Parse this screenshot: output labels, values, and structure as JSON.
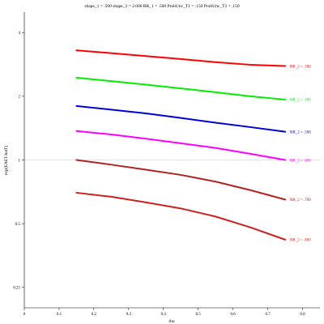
{
  "chart_data": {
    "type": "line",
    "title": "shape_1 = .500  shape_2 = 2.000  RR_1 = .500  ProbUnc_T1 = .150  ProbUnc_T2 = .150",
    "xlabel": "rho",
    "ylabel": "exp(EAET.hatT)",
    "xlim": [
      0,
      0.85
    ],
    "ylim": [
      0.2,
      5
    ],
    "yscale": "log",
    "x_ticks": [
      0,
      0.1,
      0.2,
      0.3,
      0.4,
      0.5,
      0.6,
      0.7,
      0.8
    ],
    "x_tick_labels": [
      "0",
      "0.1",
      "0.2",
      "0.3",
      "0.4",
      "0.5",
      "0.6",
      "0.7",
      "0.8"
    ],
    "y_ticks": [
      0.25,
      0.5,
      1,
      2,
      4
    ],
    "y_tick_labels": [
      "0.25",
      "0.5",
      "1",
      "2",
      "4"
    ],
    "reference_line_y": 1,
    "series": [
      {
        "name": "RR_2 = .300",
        "color": "#ff0000",
        "x": [
          0.15,
          0.25,
          0.35,
          0.45,
          0.55,
          0.65,
          0.75
        ],
        "y": [
          3.3,
          3.2,
          3.1,
          3.0,
          2.9,
          2.82,
          2.78
        ]
      },
      {
        "name": "RR_2 = .400",
        "color": "#00ee00",
        "x": [
          0.15,
          0.25,
          0.35,
          0.45,
          0.55,
          0.65,
          0.75
        ],
        "y": [
          2.45,
          2.36,
          2.27,
          2.18,
          2.09,
          2.0,
          1.93
        ]
      },
      {
        "name": "RR_2 = .500",
        "color": "#0000dd",
        "x": [
          0.15,
          0.25,
          0.35,
          0.45,
          0.55,
          0.65,
          0.75
        ],
        "y": [
          1.8,
          1.73,
          1.66,
          1.58,
          1.5,
          1.43,
          1.36
        ]
      },
      {
        "name": "RR_2 = .600",
        "color": "#ff00ff",
        "x": [
          0.15,
          0.25,
          0.35,
          0.45,
          0.55,
          0.65,
          0.75
        ],
        "y": [
          1.37,
          1.32,
          1.26,
          1.2,
          1.14,
          1.07,
          1.0
        ]
      },
      {
        "name": "RR_2 = .700",
        "color": "#b22222",
        "x": [
          0.15,
          0.25,
          0.35,
          0.45,
          0.55,
          0.65,
          0.75
        ],
        "y": [
          1.0,
          0.95,
          0.9,
          0.85,
          0.79,
          0.72,
          0.65
        ]
      },
      {
        "name": "RR_2 = .800",
        "color": "#cc2020",
        "x": [
          0.15,
          0.25,
          0.35,
          0.45,
          0.55,
          0.65,
          0.75
        ],
        "y": [
          0.7,
          0.67,
          0.63,
          0.59,
          0.54,
          0.48,
          0.42
        ]
      }
    ]
  }
}
